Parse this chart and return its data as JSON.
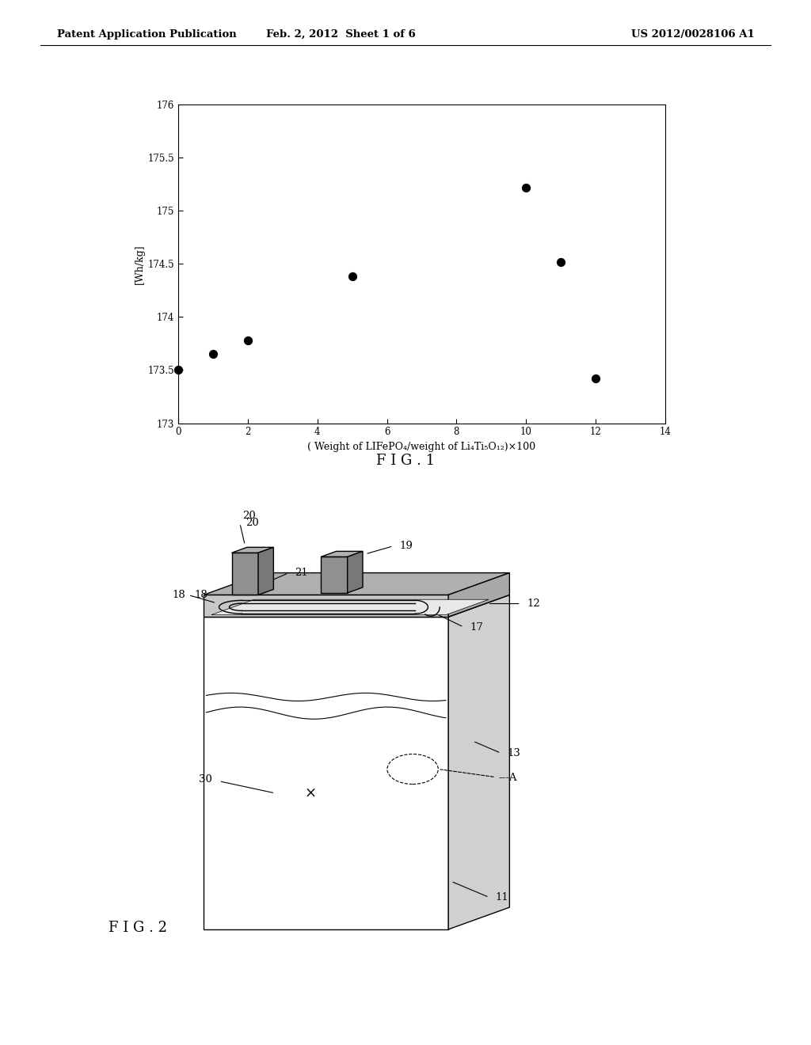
{
  "header_left": "Patent Application Publication",
  "header_mid": "Feb. 2, 2012  Sheet 1 of 6",
  "header_right": "US 2012/0028106 A1",
  "fig1_title": "F I G . 1",
  "fig2_title": "F I G . 2",
  "scatter_x": [
    0,
    1,
    2,
    5,
    10,
    11,
    12
  ],
  "scatter_y": [
    173.5,
    173.65,
    173.78,
    174.38,
    175.22,
    174.52,
    173.42
  ],
  "xlabel": "( Weight of LIFePO₄/weight of Li₄Ti₅O₁₂)×100",
  "ylabel": "[Wh/kg]",
  "xlim": [
    0,
    14
  ],
  "ylim": [
    173,
    176
  ],
  "ytick_vals": [
    173,
    173.5,
    174,
    174.5,
    175,
    175.5,
    176
  ],
  "ytick_labels": [
    "173",
    "173.5",
    "174",
    "174.5",
    "175",
    "175.5",
    "176"
  ],
  "xticks": [
    0,
    2,
    4,
    6,
    8,
    10,
    12,
    14
  ],
  "bg_color": "#ffffff",
  "text_color": "#000000",
  "dot_color": "#000000",
  "dot_size": 50
}
